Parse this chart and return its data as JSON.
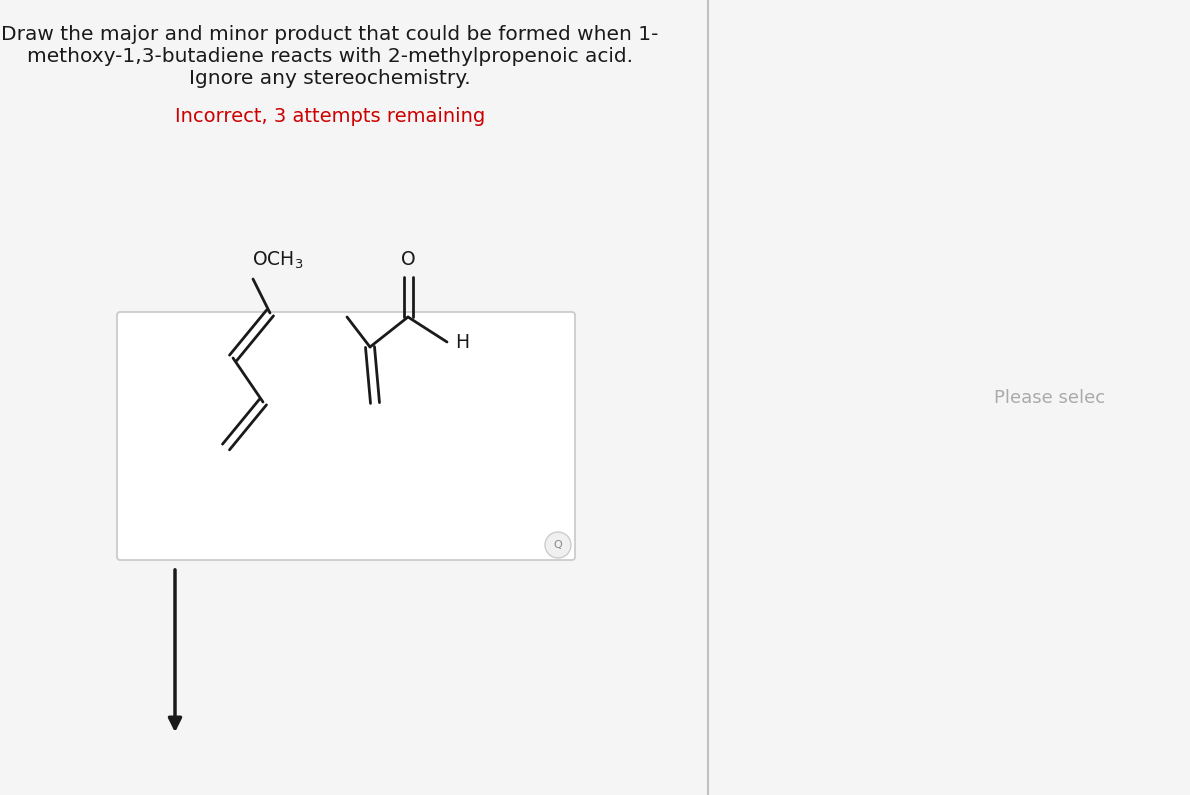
{
  "title_text": "Draw the major and minor product that could be formed when 1-\nmethoxy-1,3-butadiene reacts with 2-methylpropenoic acid.\nIgnore any stereochemistry.",
  "title_color": "#1a1a1a",
  "title_fontsize": 14.5,
  "incorrect_text": "Incorrect, 3 attempts remaining",
  "incorrect_color": "#cc0000",
  "incorrect_fontsize": 14,
  "please_select_text": "Please selec",
  "please_select_color": "#aaaaaa",
  "please_select_fontsize": 13,
  "bg_color": "#f5f5f5",
  "box_color": "#c8c8c8",
  "line_color": "#1a1a1a",
  "divider_color": "#c0c0c0"
}
